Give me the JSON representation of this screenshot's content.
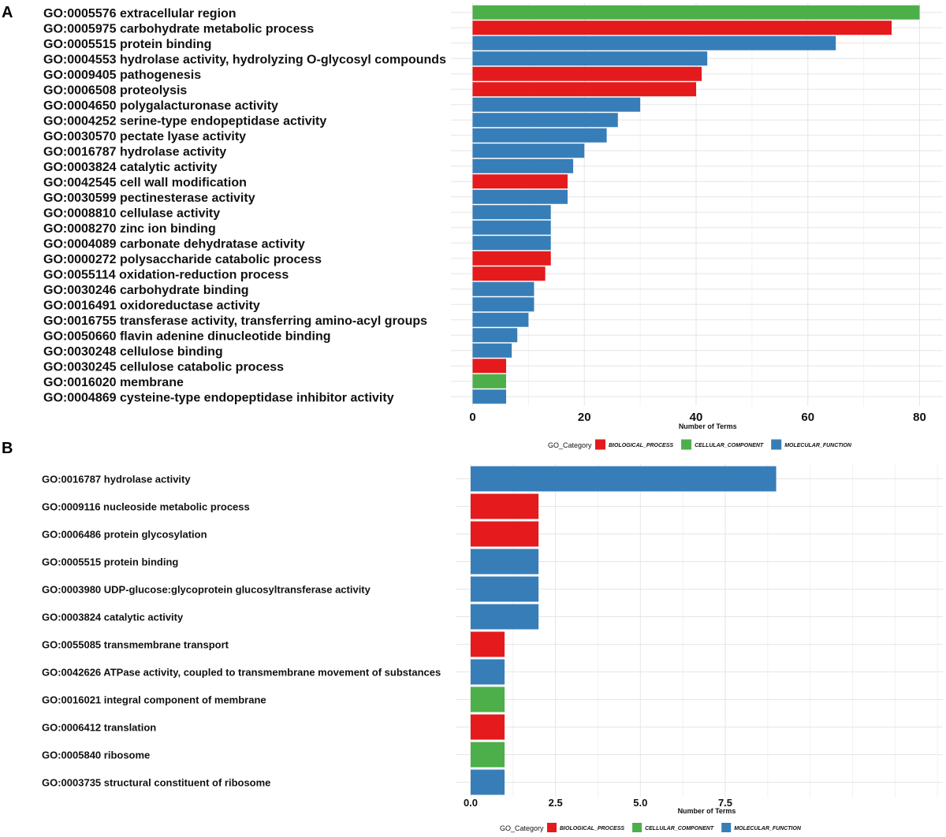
{
  "colors": {
    "BIOLOGICAL_PROCESS": "#e41a1c",
    "CELLULAR_COMPONENT": "#4daf4a",
    "MOLECULAR_FUNCTION": "#377eb8"
  },
  "chart_data": [
    {
      "panel": "A",
      "type": "bar",
      "orientation": "horizontal",
      "xlabel": "Number of Terms",
      "xlim": [
        0,
        82
      ],
      "xticks": [
        0,
        20,
        40,
        60,
        80
      ],
      "tick_labels": [
        "0",
        "20",
        "40",
        "60",
        "80"
      ],
      "legend": {
        "title": "GO_Category",
        "items": [
          "BIOLOGICAL_PROCESS",
          "CELLULAR_COMPONENT",
          "MOLECULAR_FUNCTION"
        ]
      },
      "bars": [
        {
          "label": "GO:0005576 extracellular region",
          "value": 80,
          "category": "CELLULAR_COMPONENT"
        },
        {
          "label": "GO:0005975 carbohydrate metabolic process",
          "value": 75,
          "category": "BIOLOGICAL_PROCESS"
        },
        {
          "label": "GO:0005515 protein binding",
          "value": 65,
          "category": "MOLECULAR_FUNCTION"
        },
        {
          "label": "GO:0004553 hydrolase activity, hydrolyzing O-glycosyl compounds",
          "value": 42,
          "category": "MOLECULAR_FUNCTION"
        },
        {
          "label": "GO:0009405 pathogenesis",
          "value": 41,
          "category": "BIOLOGICAL_PROCESS"
        },
        {
          "label": "GO:0006508 proteolysis",
          "value": 40,
          "category": "BIOLOGICAL_PROCESS"
        },
        {
          "label": "GO:0004650 polygalacturonase activity",
          "value": 30,
          "category": "MOLECULAR_FUNCTION"
        },
        {
          "label": "GO:0004252 serine-type endopeptidase activity",
          "value": 26,
          "category": "MOLECULAR_FUNCTION"
        },
        {
          "label": "GO:0030570 pectate lyase activity",
          "value": 24,
          "category": "MOLECULAR_FUNCTION"
        },
        {
          "label": "GO:0016787 hydrolase activity",
          "value": 20,
          "category": "MOLECULAR_FUNCTION"
        },
        {
          "label": "GO:0003824 catalytic activity",
          "value": 18,
          "category": "MOLECULAR_FUNCTION"
        },
        {
          "label": "GO:0042545 cell wall modification",
          "value": 17,
          "category": "BIOLOGICAL_PROCESS"
        },
        {
          "label": "GO:0030599 pectinesterase activity",
          "value": 17,
          "category": "MOLECULAR_FUNCTION"
        },
        {
          "label": "GO:0008810 cellulase activity",
          "value": 14,
          "category": "MOLECULAR_FUNCTION"
        },
        {
          "label": "GO:0008270 zinc ion binding",
          "value": 14,
          "category": "MOLECULAR_FUNCTION"
        },
        {
          "label": "GO:0004089 carbonate dehydratase activity",
          "value": 14,
          "category": "MOLECULAR_FUNCTION"
        },
        {
          "label": "GO:0000272 polysaccharide catabolic process",
          "value": 14,
          "category": "BIOLOGICAL_PROCESS"
        },
        {
          "label": "GO:0055114 oxidation-reduction process",
          "value": 13,
          "category": "BIOLOGICAL_PROCESS"
        },
        {
          "label": "GO:0030246 carbohydrate binding",
          "value": 11,
          "category": "MOLECULAR_FUNCTION"
        },
        {
          "label": "GO:0016491 oxidoreductase activity",
          "value": 11,
          "category": "MOLECULAR_FUNCTION"
        },
        {
          "label": "GO:0016755 transferase activity, transferring amino-acyl groups",
          "value": 10,
          "category": "MOLECULAR_FUNCTION"
        },
        {
          "label": "GO:0050660 flavin adenine dinucleotide binding",
          "value": 8,
          "category": "MOLECULAR_FUNCTION"
        },
        {
          "label": "GO:0030248 cellulose binding",
          "value": 7,
          "category": "MOLECULAR_FUNCTION"
        },
        {
          "label": "GO:0030245 cellulose catabolic process",
          "value": 6,
          "category": "BIOLOGICAL_PROCESS"
        },
        {
          "label": "GO:0016020 membrane",
          "value": 6,
          "category": "CELLULAR_COMPONENT"
        },
        {
          "label": "GO:0004869 cysteine-type endopeptidase inhibitor activity",
          "value": 6,
          "category": "MOLECULAR_FUNCTION"
        }
      ]
    },
    {
      "panel": "B",
      "type": "bar",
      "orientation": "horizontal",
      "xlabel": "Number of Terms",
      "xlim": [
        0,
        9.45
      ],
      "xticks": [
        0,
        2.5,
        5,
        7.5
      ],
      "tick_labels": [
        "0.0",
        "2.5",
        "5.0",
        "7.5"
      ],
      "legend": {
        "title": "GO_Category",
        "items": [
          "BIOLOGICAL_PROCESS",
          "CELLULAR_COMPONENT",
          "MOLECULAR_FUNCTION"
        ]
      },
      "bars": [
        {
          "label": "GO:0016787 hydrolase activity",
          "value": 9,
          "category": "MOLECULAR_FUNCTION"
        },
        {
          "label": "GO:0009116 nucleoside metabolic process",
          "value": 2,
          "category": "BIOLOGICAL_PROCESS"
        },
        {
          "label": "GO:0006486 protein glycosylation",
          "value": 2,
          "category": "BIOLOGICAL_PROCESS"
        },
        {
          "label": "GO:0005515 protein binding",
          "value": 2,
          "category": "MOLECULAR_FUNCTION"
        },
        {
          "label": "GO:0003980 UDP-glucose:glycoprotein glucosyltransferase activity",
          "value": 2,
          "category": "MOLECULAR_FUNCTION"
        },
        {
          "label": "GO:0003824 catalytic activity",
          "value": 2,
          "category": "MOLECULAR_FUNCTION"
        },
        {
          "label": "GO:0055085 transmembrane transport",
          "value": 1,
          "category": "BIOLOGICAL_PROCESS"
        },
        {
          "label": "GO:0042626 ATPase activity, coupled to transmembrane movement of substances",
          "value": 1,
          "category": "MOLECULAR_FUNCTION"
        },
        {
          "label": "GO:0016021 integral component of membrane",
          "value": 1,
          "category": "CELLULAR_COMPONENT"
        },
        {
          "label": "GO:0006412 translation",
          "value": 1,
          "category": "BIOLOGICAL_PROCESS"
        },
        {
          "label": "GO:0005840 ribosome",
          "value": 1,
          "category": "CELLULAR_COMPONENT"
        },
        {
          "label": "GO:0003735 structural constituent of ribosome",
          "value": 1,
          "category": "MOLECULAR_FUNCTION"
        }
      ]
    }
  ]
}
